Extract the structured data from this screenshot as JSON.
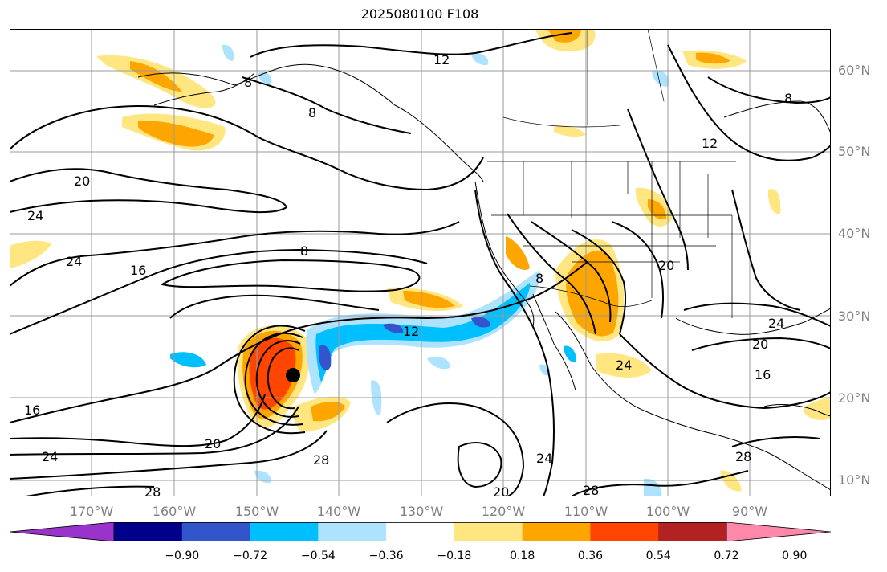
{
  "title": "2025080100 F108",
  "lat_labels": [
    "60°N",
    "50°N",
    "40°N",
    "30°N",
    "20°N",
    "10°N"
  ],
  "lon_labels": [
    "170°W",
    "160°W",
    "150°W",
    "140°W",
    "130°W",
    "120°W",
    "110°W",
    "100°W",
    "90°W"
  ],
  "contour_labels": [
    "12",
    "8",
    "8",
    "8",
    "20",
    "24",
    "24",
    "16",
    "8",
    "12",
    "20",
    "8",
    "12",
    "24",
    "20",
    "24",
    "16",
    "16",
    "20",
    "24",
    "28",
    "28",
    "24",
    "20",
    "28",
    "28"
  ],
  "colorbar": {
    "ticks": [
      "−0.90",
      "−0.72",
      "−0.54",
      "−0.36",
      "−0.18",
      "0.18",
      "0.36",
      "0.54",
      "0.72",
      "0.90"
    ],
    "colors": [
      "#9933cc",
      "#00008b",
      "#3355cc",
      "#00bfff",
      "#aee3ff",
      "#ffffff",
      "#ffe680",
      "#ffa500",
      "#ff4500",
      "#b22222",
      "#ff88aa"
    ]
  },
  "colors": {
    "neg_light": "#aee3ff",
    "neg_mid": "#00bfff",
    "neg_dark": "#3355cc",
    "pos_light": "#ffe680",
    "pos_mid": "#ffa500",
    "pos_dark": "#ff4500",
    "pos_darker": "#b22222"
  },
  "marker": "storm-center-dot"
}
